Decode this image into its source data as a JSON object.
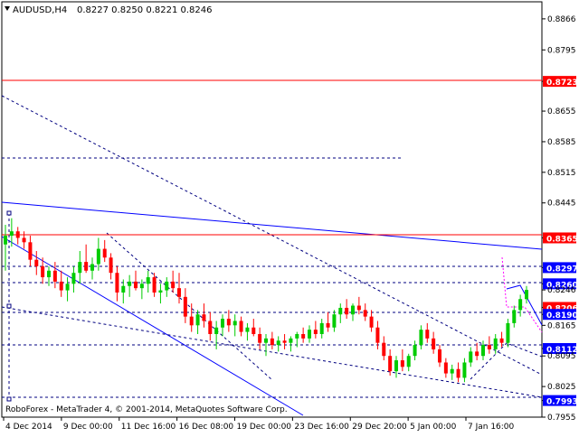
{
  "header": {
    "symbol_timeframe": "AUDUSD,H4",
    "ohlc": "0.8227 0.8250 0.8221 0.8246"
  },
  "footer": {
    "copyright": "RoboForex - MetaTrader 4, © 2001-2014, MetaQuotes Software Corp."
  },
  "colors": {
    "background": "#ffffff",
    "bull_candle": "#00cc00",
    "bear_candle": "#ff0000",
    "support_resistance_line": "#0000ff",
    "horizontal_level_line": "#ff0000",
    "price_tag": "#ff0000",
    "price_tag_blue": "#0000ff"
  },
  "chart_data": {
    "type": "candlestick",
    "symbol": "AUDUSD",
    "timeframe": "H4",
    "y_range": [
      0.7955,
      0.8905
    ],
    "price_ticks": [
      "0.8866",
      "0.8795",
      "0.8723",
      "0.8655",
      "0.8585",
      "0.8515",
      "0.8445",
      "0.8365",
      "0.8297",
      "0.8260",
      "0.8246",
      "0.8206",
      "0.8190",
      "0.8165",
      "0.8112",
      "0.8095",
      "0.8025",
      "0.7993",
      "0.7955"
    ],
    "highlighted_levels": [
      {
        "value": "0.8723",
        "style": "red"
      },
      {
        "value": "0.8365",
        "style": "red"
      },
      {
        "value": "0.8297",
        "style": "blue"
      },
      {
        "value": "0.8260",
        "style": "blue"
      },
      {
        "value": "0.8206",
        "style": "red"
      },
      {
        "value": "0.8190",
        "style": "blue"
      },
      {
        "value": "0.8112",
        "style": "blue"
      },
      {
        "value": "0.7993",
        "style": "blue"
      }
    ],
    "time_labels": [
      "4 Dec 2014",
      "9 Dec 00:00",
      "11 Dec 16:00",
      "16 Dec 08:00",
      "19 Dec 00:00",
      "23 Dec 16:00",
      "29 Dec 20:00",
      "5 Jan 00:00",
      "7 Jan 16:00"
    ],
    "candles": [
      {
        "o": 0.835,
        "h": 0.8395,
        "l": 0.829,
        "c": 0.837
      },
      {
        "o": 0.837,
        "h": 0.841,
        "l": 0.8345,
        "c": 0.838
      },
      {
        "o": 0.838,
        "h": 0.839,
        "l": 0.835,
        "c": 0.8365
      },
      {
        "o": 0.8365,
        "h": 0.838,
        "l": 0.834,
        "c": 0.8355
      },
      {
        "o": 0.8355,
        "h": 0.837,
        "l": 0.83,
        "c": 0.8315
      },
      {
        "o": 0.8315,
        "h": 0.8335,
        "l": 0.828,
        "c": 0.83
      },
      {
        "o": 0.83,
        "h": 0.832,
        "l": 0.826,
        "c": 0.8275
      },
      {
        "o": 0.8275,
        "h": 0.83,
        "l": 0.8255,
        "c": 0.829
      },
      {
        "o": 0.829,
        "h": 0.831,
        "l": 0.825,
        "c": 0.8265
      },
      {
        "o": 0.8265,
        "h": 0.829,
        "l": 0.823,
        "c": 0.8245
      },
      {
        "o": 0.8245,
        "h": 0.8275,
        "l": 0.822,
        "c": 0.826
      },
      {
        "o": 0.826,
        "h": 0.83,
        "l": 0.824,
        "c": 0.8285
      },
      {
        "o": 0.8285,
        "h": 0.8335,
        "l": 0.826,
        "c": 0.831
      },
      {
        "o": 0.831,
        "h": 0.835,
        "l": 0.8285,
        "c": 0.829
      },
      {
        "o": 0.829,
        "h": 0.832,
        "l": 0.827,
        "c": 0.8305
      },
      {
        "o": 0.8305,
        "h": 0.8365,
        "l": 0.829,
        "c": 0.834
      },
      {
        "o": 0.834,
        "h": 0.836,
        "l": 0.831,
        "c": 0.832
      },
      {
        "o": 0.832,
        "h": 0.833,
        "l": 0.827,
        "c": 0.8285
      },
      {
        "o": 0.8285,
        "h": 0.83,
        "l": 0.822,
        "c": 0.824
      },
      {
        "o": 0.824,
        "h": 0.827,
        "l": 0.8215,
        "c": 0.8255
      },
      {
        "o": 0.8255,
        "h": 0.828,
        "l": 0.823,
        "c": 0.8265
      },
      {
        "o": 0.8265,
        "h": 0.829,
        "l": 0.8245,
        "c": 0.825
      },
      {
        "o": 0.825,
        "h": 0.827,
        "l": 0.8225,
        "c": 0.826
      },
      {
        "o": 0.826,
        "h": 0.829,
        "l": 0.824,
        "c": 0.8275
      },
      {
        "o": 0.8275,
        "h": 0.8285,
        "l": 0.823,
        "c": 0.824
      },
      {
        "o": 0.824,
        "h": 0.826,
        "l": 0.8215,
        "c": 0.8245
      },
      {
        "o": 0.8245,
        "h": 0.8275,
        "l": 0.823,
        "c": 0.8265
      },
      {
        "o": 0.8265,
        "h": 0.829,
        "l": 0.824,
        "c": 0.825
      },
      {
        "o": 0.825,
        "h": 0.8285,
        "l": 0.8215,
        "c": 0.823
      },
      {
        "o": 0.823,
        "h": 0.825,
        "l": 0.817,
        "c": 0.8185
      },
      {
        "o": 0.8185,
        "h": 0.8215,
        "l": 0.815,
        "c": 0.8165
      },
      {
        "o": 0.8165,
        "h": 0.82,
        "l": 0.8145,
        "c": 0.819
      },
      {
        "o": 0.819,
        "h": 0.8215,
        "l": 0.816,
        "c": 0.8175
      },
      {
        "o": 0.8175,
        "h": 0.8195,
        "l": 0.813,
        "c": 0.8145
      },
      {
        "o": 0.8145,
        "h": 0.8175,
        "l": 0.811,
        "c": 0.816
      },
      {
        "o": 0.816,
        "h": 0.819,
        "l": 0.814,
        "c": 0.818
      },
      {
        "o": 0.818,
        "h": 0.82,
        "l": 0.815,
        "c": 0.8165
      },
      {
        "o": 0.8165,
        "h": 0.819,
        "l": 0.814,
        "c": 0.8175
      },
      {
        "o": 0.8175,
        "h": 0.8185,
        "l": 0.814,
        "c": 0.815
      },
      {
        "o": 0.815,
        "h": 0.817,
        "l": 0.813,
        "c": 0.816
      },
      {
        "o": 0.816,
        "h": 0.818,
        "l": 0.814,
        "c": 0.8145
      },
      {
        "o": 0.8145,
        "h": 0.816,
        "l": 0.811,
        "c": 0.8125
      },
      {
        "o": 0.8125,
        "h": 0.8145,
        "l": 0.8095,
        "c": 0.8135
      },
      {
        "o": 0.8135,
        "h": 0.815,
        "l": 0.811,
        "c": 0.812
      },
      {
        "o": 0.812,
        "h": 0.814,
        "l": 0.8105,
        "c": 0.813
      },
      {
        "o": 0.813,
        "h": 0.8145,
        "l": 0.811,
        "c": 0.8125
      },
      {
        "o": 0.8125,
        "h": 0.814,
        "l": 0.8105,
        "c": 0.8135
      },
      {
        "o": 0.8135,
        "h": 0.815,
        "l": 0.8115,
        "c": 0.8145
      },
      {
        "o": 0.8145,
        "h": 0.816,
        "l": 0.8125,
        "c": 0.8135
      },
      {
        "o": 0.8135,
        "h": 0.8165,
        "l": 0.8125,
        "c": 0.8155
      },
      {
        "o": 0.8155,
        "h": 0.8175,
        "l": 0.8135,
        "c": 0.8145
      },
      {
        "o": 0.8145,
        "h": 0.818,
        "l": 0.8135,
        "c": 0.817
      },
      {
        "o": 0.817,
        "h": 0.8195,
        "l": 0.815,
        "c": 0.816
      },
      {
        "o": 0.816,
        "h": 0.82,
        "l": 0.815,
        "c": 0.819
      },
      {
        "o": 0.819,
        "h": 0.8215,
        "l": 0.817,
        "c": 0.8205
      },
      {
        "o": 0.8205,
        "h": 0.8225,
        "l": 0.818,
        "c": 0.819
      },
      {
        "o": 0.819,
        "h": 0.8215,
        "l": 0.8175,
        "c": 0.821
      },
      {
        "o": 0.821,
        "h": 0.823,
        "l": 0.819,
        "c": 0.82
      },
      {
        "o": 0.82,
        "h": 0.8215,
        "l": 0.8175,
        "c": 0.8185
      },
      {
        "o": 0.8185,
        "h": 0.82,
        "l": 0.815,
        "c": 0.816
      },
      {
        "o": 0.816,
        "h": 0.8175,
        "l": 0.811,
        "c": 0.8125
      },
      {
        "o": 0.8125,
        "h": 0.814,
        "l": 0.8085,
        "c": 0.8095
      },
      {
        "o": 0.8095,
        "h": 0.811,
        "l": 0.805,
        "c": 0.806
      },
      {
        "o": 0.806,
        "h": 0.8095,
        "l": 0.8045,
        "c": 0.8085
      },
      {
        "o": 0.8085,
        "h": 0.811,
        "l": 0.806,
        "c": 0.807
      },
      {
        "o": 0.807,
        "h": 0.81,
        "l": 0.806,
        "c": 0.8095
      },
      {
        "o": 0.8095,
        "h": 0.813,
        "l": 0.8085,
        "c": 0.812
      },
      {
        "o": 0.812,
        "h": 0.8165,
        "l": 0.811,
        "c": 0.8155
      },
      {
        "o": 0.8155,
        "h": 0.817,
        "l": 0.8125,
        "c": 0.8135
      },
      {
        "o": 0.8135,
        "h": 0.815,
        "l": 0.81,
        "c": 0.811
      },
      {
        "o": 0.811,
        "h": 0.812,
        "l": 0.807,
        "c": 0.808
      },
      {
        "o": 0.808,
        "h": 0.809,
        "l": 0.8045,
        "c": 0.8055
      },
      {
        "o": 0.8055,
        "h": 0.8075,
        "l": 0.804,
        "c": 0.8065
      },
      {
        "o": 0.8065,
        "h": 0.808,
        "l": 0.8035,
        "c": 0.8045
      },
      {
        "o": 0.8045,
        "h": 0.809,
        "l": 0.8035,
        "c": 0.808
      },
      {
        "o": 0.808,
        "h": 0.8115,
        "l": 0.807,
        "c": 0.8105
      },
      {
        "o": 0.8105,
        "h": 0.8125,
        "l": 0.8085,
        "c": 0.8095
      },
      {
        "o": 0.8095,
        "h": 0.813,
        "l": 0.8085,
        "c": 0.812
      },
      {
        "o": 0.812,
        "h": 0.814,
        "l": 0.81,
        "c": 0.811
      },
      {
        "o": 0.811,
        "h": 0.8145,
        "l": 0.81,
        "c": 0.8135
      },
      {
        "o": 0.8135,
        "h": 0.815,
        "l": 0.8115,
        "c": 0.8125
      },
      {
        "o": 0.8125,
        "h": 0.818,
        "l": 0.8115,
        "c": 0.817
      },
      {
        "o": 0.817,
        "h": 0.821,
        "l": 0.816,
        "c": 0.82
      },
      {
        "o": 0.82,
        "h": 0.8235,
        "l": 0.8185,
        "c": 0.8225
      },
      {
        "o": 0.8225,
        "h": 0.8255,
        "l": 0.8215,
        "c": 0.8246
      }
    ]
  }
}
